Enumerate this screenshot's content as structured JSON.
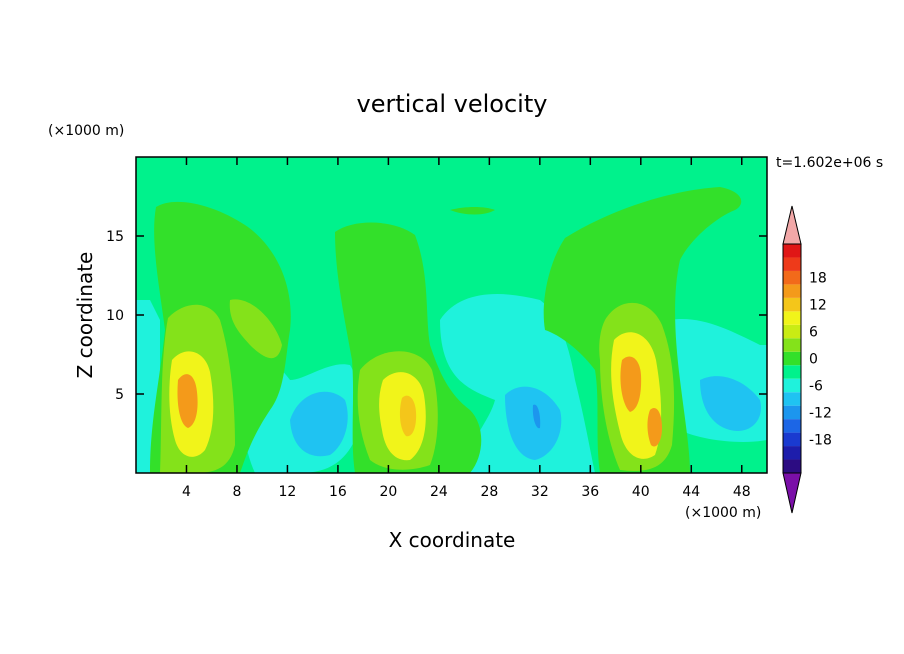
{
  "chart_data": {
    "type": "heatmap",
    "title": "vertical velocity",
    "xlabel": "X coordinate",
    "ylabel": "Z coordinate",
    "x_unit": "(×1000 m)",
    "y_unit": "(×1000 m)",
    "time_label": "t=1.602e+06 s",
    "xlim": [
      0,
      50
    ],
    "ylim": [
      0,
      20
    ],
    "xticks": [
      4,
      8,
      12,
      16,
      20,
      24,
      28,
      32,
      36,
      40,
      44,
      48
    ],
    "yticks": [
      5,
      10,
      15
    ],
    "colorbar": {
      "range": [
        -21,
        21
      ],
      "step": 3,
      "tick_labels": [
        18,
        12,
        6,
        0,
        -6,
        -12,
        -18
      ],
      "colors": [
        "#7a0fa8",
        "#2c0c82",
        "#1d1dab",
        "#1a3ad0",
        "#1c66e6",
        "#1c96ee",
        "#1fc3f2",
        "#1ff2dc",
        "#00f28c",
        "#33e02a",
        "#84e21a",
        "#c9ec14",
        "#f1f41a",
        "#f4c61a",
        "#f49a1a",
        "#f26a1a",
        "#ee3a1a",
        "#e01616",
        "#f2a8a8"
      ]
    },
    "features": [
      {
        "label": "updraft",
        "x": 4.5,
        "z": 5,
        "w": 9
      },
      {
        "label": "updraft",
        "x": 22,
        "z": 3.5,
        "w": 6
      },
      {
        "label": "updraft",
        "x": 40,
        "z": 4.5,
        "w": 10
      },
      {
        "label": "downdraft",
        "x": 15,
        "z": 3,
        "w": -3
      },
      {
        "label": "downdraft",
        "x": 31,
        "z": 3,
        "w": -4
      }
    ]
  }
}
